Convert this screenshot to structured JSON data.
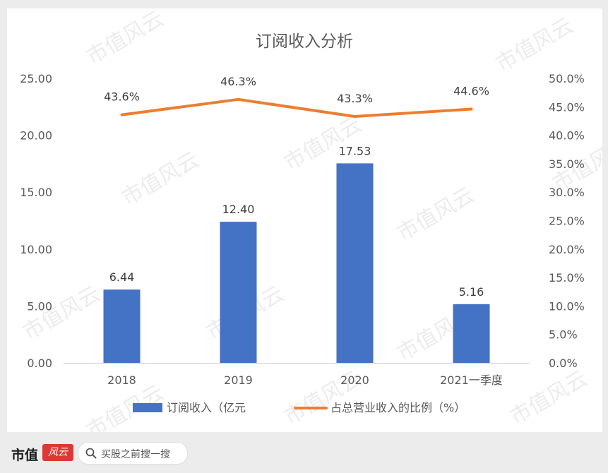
{
  "chart_data": {
    "type": "bar",
    "title": "订阅收入分析",
    "categories": [
      "2018",
      "2019",
      "2020",
      "2021一季度"
    ],
    "series": [
      {
        "name": "订阅收入（亿元",
        "type": "bar",
        "axis": "left",
        "color": "#4472c4",
        "values": [
          6.44,
          12.4,
          17.53,
          5.16
        ],
        "labels": [
          "6.44",
          "12.40",
          "17.53",
          "5.16"
        ]
      },
      {
        "name": "占总营业收入的比例（%）",
        "type": "line",
        "axis": "right",
        "color": "#ed7d31",
        "values": [
          43.6,
          46.3,
          43.3,
          44.6
        ],
        "labels": [
          "43.6%",
          "46.3%",
          "43.3%",
          "44.6%"
        ]
      }
    ],
    "y_left": {
      "range": [
        0,
        25
      ],
      "ticks": [
        "0.00",
        "5.00",
        "10.00",
        "15.00",
        "20.00",
        "25.00"
      ]
    },
    "y_right": {
      "range": [
        0,
        50
      ],
      "ticks": [
        "0.0%",
        "5.0%",
        "10.0%",
        "15.0%",
        "20.0%",
        "25.0%",
        "30.0%",
        "35.0%",
        "40.0%",
        "45.0%",
        "50.0%"
      ]
    },
    "grid": false,
    "legend": "bottom"
  },
  "watermark": "市值风云",
  "footer": {
    "brand": "市值",
    "brand_logo": "风云",
    "search_label": "买股之前搜一搜"
  }
}
